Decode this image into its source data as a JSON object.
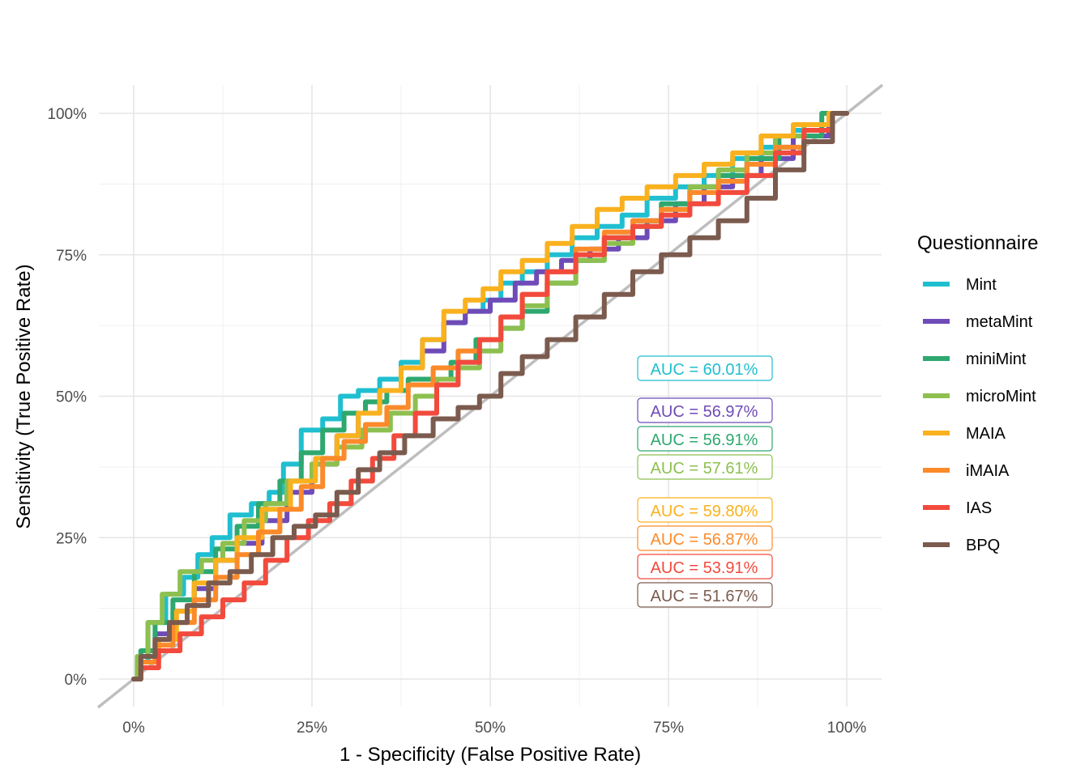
{
  "chart_data": {
    "type": "line",
    "xlabel": "1 - Specificity (False Positive Rate)",
    "ylabel": "Sensitivity (True Positive Rate)",
    "xlim": [
      0,
      1
    ],
    "ylim": [
      0,
      1
    ],
    "x_ticks": [
      "0%",
      "25%",
      "50%",
      "75%",
      "100%"
    ],
    "y_ticks": [
      "0%",
      "25%",
      "50%",
      "75%",
      "100%"
    ],
    "grid": true,
    "reference_line": {
      "from": [
        0,
        0
      ],
      "to": [
        1,
        1
      ],
      "color": "#bebebe"
    },
    "legend": {
      "title": "Questionnaire",
      "position": "right"
    },
    "series": [
      {
        "name": "Mint",
        "color": "#1fbfd0",
        "auc_label": "AUC = 60.01%",
        "x": [
          0,
          0.01,
          0.03,
          0.06,
          0.08,
          0.1,
          0.12,
          0.15,
          0.18,
          0.2,
          0.22,
          0.25,
          0.28,
          0.3,
          0.33,
          0.36,
          0.39,
          0.42,
          0.45,
          0.48,
          0.5,
          0.53,
          0.56,
          0.6,
          0.63,
          0.67,
          0.7,
          0.74,
          0.78,
          0.82,
          0.86,
          0.9,
          0.95,
          1.0
        ],
        "y": [
          0,
          0.03,
          0.1,
          0.15,
          0.18,
          0.22,
          0.25,
          0.29,
          0.31,
          0.33,
          0.38,
          0.44,
          0.46,
          0.5,
          0.51,
          0.53,
          0.56,
          0.6,
          0.63,
          0.65,
          0.67,
          0.7,
          0.72,
          0.75,
          0.78,
          0.8,
          0.82,
          0.85,
          0.87,
          0.89,
          0.92,
          0.94,
          0.97,
          1.0
        ]
      },
      {
        "name": "metaMint",
        "color": "#6f4bb8",
        "auc_label": "AUC = 56.97%",
        "x": [
          0,
          0.02,
          0.04,
          0.07,
          0.1,
          0.13,
          0.16,
          0.2,
          0.23,
          0.27,
          0.3,
          0.33,
          0.36,
          0.39,
          0.42,
          0.45,
          0.48,
          0.52,
          0.55,
          0.58,
          0.62,
          0.66,
          0.7,
          0.74,
          0.78,
          0.82,
          0.86,
          0.9,
          0.95,
          1.0
        ],
        "y": [
          0,
          0.04,
          0.08,
          0.12,
          0.16,
          0.21,
          0.24,
          0.28,
          0.33,
          0.38,
          0.43,
          0.47,
          0.51,
          0.55,
          0.58,
          0.63,
          0.65,
          0.67,
          0.7,
          0.72,
          0.74,
          0.76,
          0.78,
          0.81,
          0.84,
          0.87,
          0.89,
          0.92,
          0.96,
          1.0
        ]
      },
      {
        "name": "miniMint",
        "color": "#2ea86f",
        "auc_label": "AUC = 56.91%",
        "x": [
          0,
          0.02,
          0.04,
          0.07,
          0.1,
          0.13,
          0.16,
          0.19,
          0.22,
          0.25,
          0.28,
          0.31,
          0.34,
          0.37,
          0.4,
          0.43,
          0.46,
          0.5,
          0.53,
          0.56,
          0.6,
          0.64,
          0.68,
          0.72,
          0.76,
          0.8,
          0.84,
          0.88,
          0.93,
          1.0
        ],
        "y": [
          0,
          0.05,
          0.1,
          0.14,
          0.19,
          0.23,
          0.27,
          0.31,
          0.35,
          0.4,
          0.44,
          0.47,
          0.49,
          0.51,
          0.53,
          0.53,
          0.56,
          0.6,
          0.62,
          0.65,
          0.7,
          0.74,
          0.78,
          0.81,
          0.84,
          0.87,
          0.89,
          0.92,
          0.96,
          1.0
        ]
      },
      {
        "name": "microMint",
        "color": "#8dc04f",
        "auc_label": "AUC = 57.61%",
        "x": [
          0,
          0.01,
          0.03,
          0.05,
          0.08,
          0.11,
          0.14,
          0.17,
          0.2,
          0.23,
          0.27,
          0.3,
          0.34,
          0.38,
          0.41,
          0.44,
          0.47,
          0.5,
          0.53,
          0.56,
          0.6,
          0.64,
          0.68,
          0.72,
          0.76,
          0.8,
          0.84,
          0.88,
          0.92,
          0.96,
          1.0
        ],
        "y": [
          0,
          0.04,
          0.1,
          0.15,
          0.19,
          0.21,
          0.24,
          0.28,
          0.31,
          0.35,
          0.38,
          0.41,
          0.44,
          0.47,
          0.5,
          0.53,
          0.55,
          0.58,
          0.62,
          0.66,
          0.7,
          0.74,
          0.77,
          0.8,
          0.83,
          0.87,
          0.9,
          0.93,
          0.96,
          0.98,
          1.0
        ]
      },
      {
        "name": "MAIA",
        "color": "#f9b11e",
        "auc_label": "AUC = 59.80%",
        "x": [
          0,
          0.02,
          0.05,
          0.07,
          0.1,
          0.13,
          0.16,
          0.2,
          0.24,
          0.27,
          0.3,
          0.33,
          0.36,
          0.39,
          0.42,
          0.45,
          0.48,
          0.5,
          0.53,
          0.56,
          0.6,
          0.63,
          0.67,
          0.7,
          0.74,
          0.78,
          0.82,
          0.86,
          0.9,
          0.95,
          1.0
        ],
        "y": [
          0,
          0.03,
          0.07,
          0.12,
          0.17,
          0.21,
          0.25,
          0.3,
          0.35,
          0.39,
          0.43,
          0.47,
          0.51,
          0.55,
          0.6,
          0.65,
          0.67,
          0.69,
          0.72,
          0.74,
          0.77,
          0.8,
          0.83,
          0.85,
          0.87,
          0.89,
          0.91,
          0.93,
          0.96,
          0.98,
          1.0
        ]
      },
      {
        "name": "iMAIA",
        "color": "#fb8a2a",
        "auc_label": "AUC = 56.87%",
        "x": [
          0,
          0.02,
          0.04,
          0.07,
          0.1,
          0.13,
          0.16,
          0.19,
          0.22,
          0.25,
          0.28,
          0.31,
          0.34,
          0.37,
          0.4,
          0.44,
          0.47,
          0.5,
          0.53,
          0.56,
          0.6,
          0.64,
          0.68,
          0.72,
          0.76,
          0.8,
          0.84,
          0.88,
          0.92,
          0.96,
          1.0
        ],
        "y": [
          0,
          0.03,
          0.06,
          0.1,
          0.14,
          0.18,
          0.22,
          0.26,
          0.3,
          0.34,
          0.39,
          0.42,
          0.45,
          0.48,
          0.52,
          0.55,
          0.58,
          0.6,
          0.64,
          0.68,
          0.72,
          0.76,
          0.79,
          0.81,
          0.83,
          0.86,
          0.88,
          0.91,
          0.94,
          0.97,
          1.0
        ]
      },
      {
        "name": "IAS",
        "color": "#f24a3c",
        "auc_label": "AUC = 53.91%",
        "x": [
          0,
          0.02,
          0.05,
          0.08,
          0.11,
          0.14,
          0.17,
          0.2,
          0.23,
          0.26,
          0.29,
          0.32,
          0.35,
          0.38,
          0.41,
          0.44,
          0.47,
          0.5,
          0.53,
          0.56,
          0.6,
          0.64,
          0.68,
          0.72,
          0.76,
          0.8,
          0.84,
          0.88,
          0.92,
          0.96,
          1.0
        ],
        "y": [
          0,
          0.02,
          0.05,
          0.08,
          0.11,
          0.14,
          0.17,
          0.21,
          0.25,
          0.28,
          0.31,
          0.35,
          0.39,
          0.43,
          0.47,
          0.52,
          0.56,
          0.6,
          0.64,
          0.68,
          0.72,
          0.75,
          0.78,
          0.8,
          0.82,
          0.84,
          0.86,
          0.89,
          0.93,
          0.97,
          1.0
        ]
      },
      {
        "name": "BPQ",
        "color": "#7b5b4e",
        "auc_label": "AUC = 51.67%",
        "x": [
          0,
          0.02,
          0.04,
          0.06,
          0.09,
          0.12,
          0.15,
          0.18,
          0.21,
          0.24,
          0.27,
          0.3,
          0.33,
          0.36,
          0.4,
          0.44,
          0.47,
          0.5,
          0.53,
          0.56,
          0.6,
          0.64,
          0.68,
          0.72,
          0.76,
          0.8,
          0.84,
          0.88,
          0.92,
          0.96,
          1.0
        ],
        "y": [
          0,
          0.04,
          0.07,
          0.1,
          0.13,
          0.17,
          0.19,
          0.22,
          0.25,
          0.27,
          0.29,
          0.33,
          0.37,
          0.4,
          0.43,
          0.46,
          0.48,
          0.5,
          0.54,
          0.57,
          0.6,
          0.64,
          0.68,
          0.72,
          0.75,
          0.78,
          0.81,
          0.85,
          0.9,
          0.95,
          1.0
        ]
      }
    ]
  }
}
